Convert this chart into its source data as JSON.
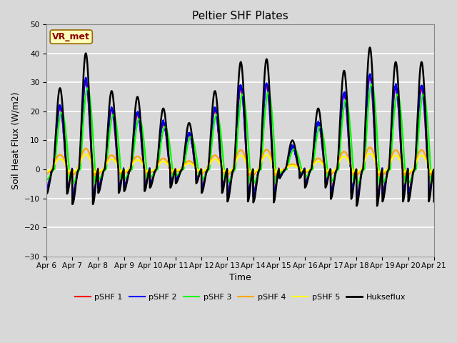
{
  "title": "Peltier SHF Plates",
  "xlabel": "Time",
  "ylabel": "Soil Heat Flux (W/m2)",
  "ylim": [
    -30,
    50
  ],
  "x_tick_labels": [
    "Apr 6",
    "Apr 7",
    "Apr 8",
    "Apr 9",
    "Apr 10",
    "Apr 11",
    "Apr 12",
    "Apr 13",
    "Apr 14",
    "Apr 15",
    "Apr 16",
    "Apr 17",
    "Apr 18",
    "Apr 19",
    "Apr 20",
    "Apr 21"
  ],
  "series_labels": [
    "pSHF 1",
    "pSHF 2",
    "pSHF 3",
    "pSHF 4",
    "pSHF 5",
    "Hukseflux"
  ],
  "series_colors": [
    "red",
    "blue",
    "#00FF00",
    "orange",
    "yellow",
    "black"
  ],
  "annotation_text": "VR_met",
  "annotation_text_color": "#8B0000",
  "annotation_bg_color": "#FFFFBB",
  "annotation_edge_color": "#996600",
  "background_color": "#D8D8D8",
  "axes_bg_color": "#D8D8D8",
  "grid_color": "white",
  "title_fontsize": 11,
  "label_fontsize": 9,
  "tick_fontsize": 7.5
}
